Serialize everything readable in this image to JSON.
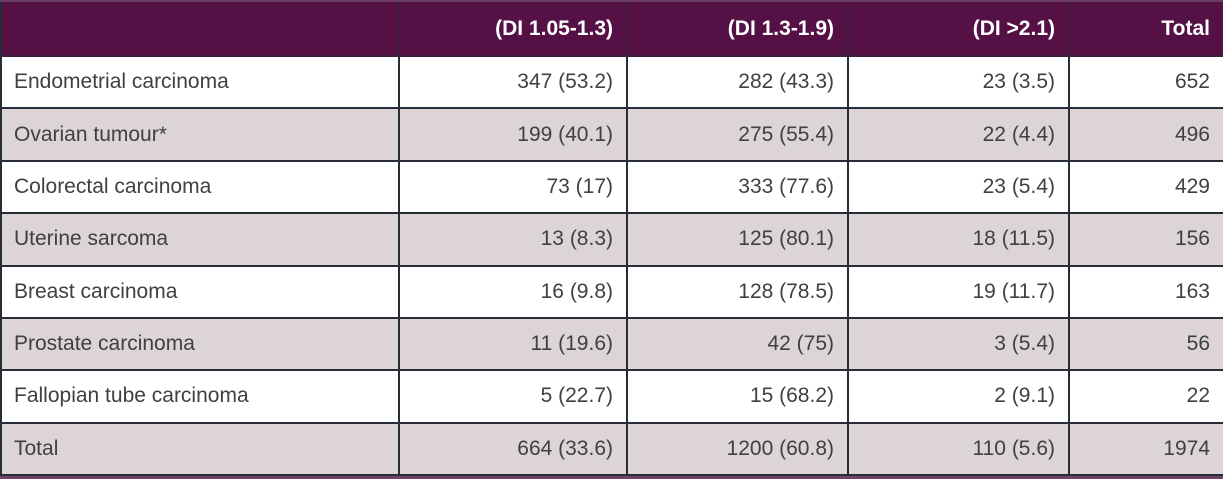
{
  "table": {
    "columns": [
      "",
      "(DI 1.05-1.3)",
      "(DI 1.3-1.9)",
      "(DI >2.1)",
      "Total"
    ],
    "rows": [
      {
        "label": "Endometrial carcinoma",
        "values": [
          "347 (53.2)",
          "282 (43.3)",
          "23 (3.5)",
          "652"
        ]
      },
      {
        "label": "Ovarian tumour*",
        "values": [
          "199 (40.1)",
          "275 (55.4)",
          "22 (4.4)",
          "496"
        ]
      },
      {
        "label": "Colorectal carcinoma",
        "values": [
          "73 (17)",
          "333 (77.6)",
          "23 (5.4)",
          "429"
        ]
      },
      {
        "label": "Uterine sarcoma",
        "values": [
          "13 (8.3)",
          "125 (80.1)",
          "18 (11.5)",
          "156"
        ]
      },
      {
        "label": "Breast carcinoma",
        "values": [
          "16 (9.8)",
          "128 (78.5)",
          "19 (11.7)",
          "163"
        ]
      },
      {
        "label": "Prostate carcinoma",
        "values": [
          "11 (19.6)",
          "42 (75)",
          "3 (5.4)",
          "56"
        ]
      },
      {
        "label": "Fallopian tube carcinoma",
        "values": [
          "5 (22.7)",
          "15 (68.2)",
          "2 (9.1)",
          "22"
        ]
      },
      {
        "label": "Total",
        "values": [
          "664 (33.6)",
          "1200 (60.8)",
          "110 (5.6)",
          "1974"
        ]
      }
    ]
  },
  "chart_data": {
    "type": "table",
    "columns": [
      "",
      "(DI 1.05-1.3)",
      "(DI 1.3-1.9)",
      "(DI >2.1)",
      "Total"
    ],
    "rows": [
      [
        "Endometrial carcinoma",
        "347 (53.2)",
        "282 (43.3)",
        "23 (3.5)",
        "652"
      ],
      [
        "Ovarian tumour*",
        "199 (40.1)",
        "275 (55.4)",
        "22 (4.4)",
        "496"
      ],
      [
        "Colorectal carcinoma",
        "73 (17)",
        "333 (77.6)",
        "23 (5.4)",
        "429"
      ],
      [
        "Uterine sarcoma",
        "13 (8.3)",
        "125 (80.1)",
        "18 (11.5)",
        "156"
      ],
      [
        "Breast carcinoma",
        "16 (9.8)",
        "128 (78.5)",
        "19 (11.7)",
        "163"
      ],
      [
        "Prostate carcinoma",
        "11 (19.6)",
        "42 (75)",
        "3 (5.4)",
        "56"
      ],
      [
        "Fallopian tube carcinoma",
        "5 (22.7)",
        "15 (68.2)",
        "2 (9.1)",
        "22"
      ],
      [
        "Total",
        "664 (33.6)",
        "1200 (60.8)",
        "110 (5.6)",
        "1974"
      ]
    ]
  },
  "colors": {
    "header_bg": "#551145",
    "header_text": "#ffffff",
    "stripe_bg": "#dcd4d5",
    "row_bg": "#ffffff",
    "grid_line": "#272d36",
    "accent_edge": "#6f4365",
    "body_text": "#3d4045"
  }
}
